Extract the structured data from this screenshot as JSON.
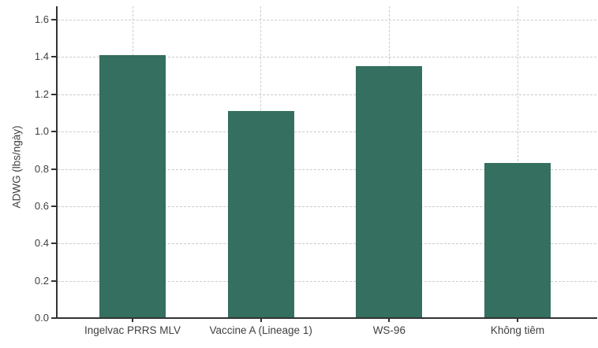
{
  "chart_data": {
    "type": "bar",
    "title": "",
    "categories": [
      "Ingelvac PRRS MLV",
      "Vaccine A (Lineage 1)",
      "WS-96",
      "Không tiêm"
    ],
    "values": [
      1.41,
      1.11,
      1.35,
      0.83
    ],
    "xlabel": "",
    "ylabel": "ADWG (lbs/ngày)",
    "ylim": [
      0,
      1.6
    ],
    "ytick_step": 0.2,
    "ytick_labels": [
      "0.0",
      "0.2",
      "0.4",
      "0.6",
      "0.8",
      "1.0",
      "1.2",
      "1.4",
      "1.6"
    ],
    "grid": "dashed, horizontal at each ytick + vertical at bar centers",
    "legend_position": "none",
    "bar_color": "#346F5F"
  },
  "colors": {
    "bar": "#346F5F",
    "axis": "#333333",
    "grid": "#CCCCCC",
    "text": "#404040",
    "background": "#FFFFFF"
  }
}
